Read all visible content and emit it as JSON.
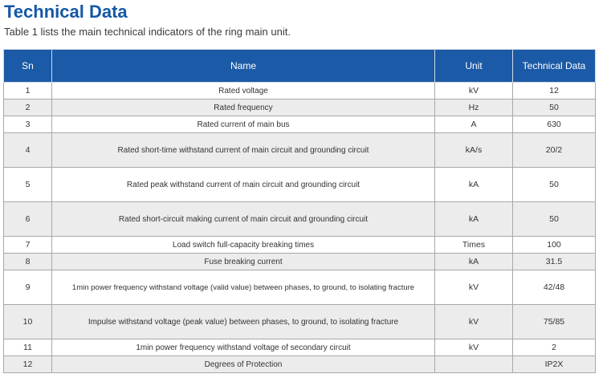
{
  "page": {
    "title": "Technical Data",
    "subtitle": "Table 1 lists the main technical indicators of the ring main unit."
  },
  "table": {
    "headers": {
      "sn": "Sn",
      "name": "Name",
      "unit": "Unit",
      "data": "Technical Data"
    },
    "rows": [
      {
        "sn": "1",
        "name": "Rated voltage",
        "unit": "kV",
        "value": "12"
      },
      {
        "sn": "2",
        "name": "Rated frequency",
        "unit": "Hz",
        "value": "50"
      },
      {
        "sn": "3",
        "name": "Rated current of main bus",
        "unit": "A",
        "value": "630"
      },
      {
        "sn": "4",
        "name": "Rated short-time withstand current of main circuit and grounding circuit",
        "unit": "kA/s",
        "value": "20/2"
      },
      {
        "sn": "5",
        "name": "Rated peak withstand current of main circuit and grounding circuit",
        "unit": "kA",
        "value": "50"
      },
      {
        "sn": "6",
        "name": "Rated short-circuit making current of main circuit and grounding circuit",
        "unit": "kA",
        "value": "50"
      },
      {
        "sn": "7",
        "name": "Load switch full-capacity breaking times",
        "unit": "Times",
        "value": "100"
      },
      {
        "sn": "8",
        "name": "Fuse breaking current",
        "unit": "kA",
        "value": "31.5"
      },
      {
        "sn": "9",
        "name": "1min power frequency withstand voltage (valid value) between phases, to ground, to isolating fracture",
        "unit": "kV",
        "value": "42/48"
      },
      {
        "sn": "10",
        "name": "Impulse withstand voltage (peak value) between phases, to ground, to isolating fracture",
        "unit": "kV",
        "value": "75/85"
      },
      {
        "sn": "11",
        "name": "1min power frequency withstand voltage of secondary circuit",
        "unit": "kV",
        "value": "2"
      },
      {
        "sn": "12",
        "name": "Degrees of Protection",
        "unit": "",
        "value": "IP2X"
      }
    ]
  }
}
